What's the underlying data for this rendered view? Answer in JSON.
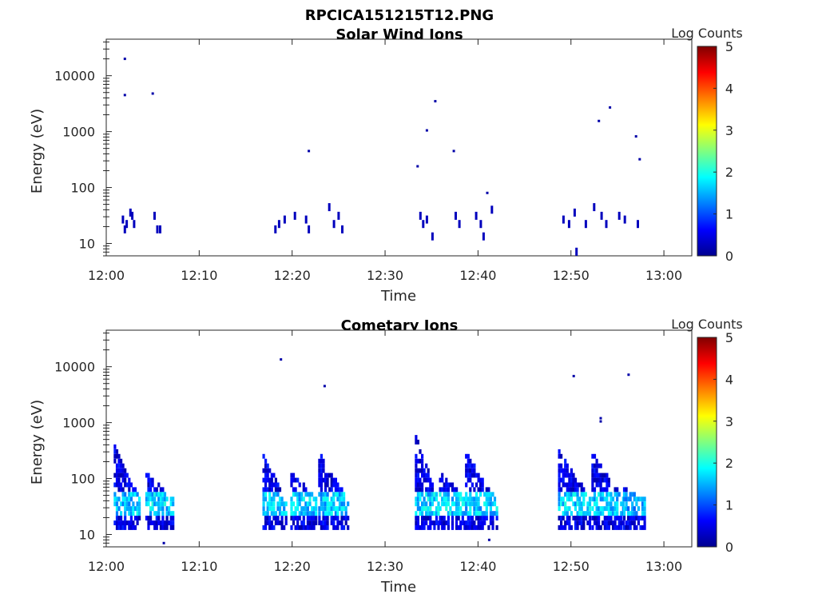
{
  "figure_title": "RPCICA151215T12.PNG",
  "chart_data": [
    {
      "type": "heatmap",
      "title": "Solar Wind Ions",
      "xlabel": "Time",
      "ylabel": "Energy (eV)",
      "y_scale": "log",
      "xlim": [
        "12:00",
        "13:03"
      ],
      "ylim": [
        6,
        45000
      ],
      "x_ticks": [
        "12:00",
        "12:10",
        "12:20",
        "12:30",
        "12:40",
        "12:50",
        "13:00"
      ],
      "y_ticks": [
        "10",
        "100",
        "1000",
        "10000"
      ],
      "colorbar": {
        "label": "Log Counts",
        "min": 0,
        "max": 5,
        "ticks": [
          "0",
          "1",
          "2",
          "3",
          "4",
          "5"
        ]
      },
      "points": [
        [
          "12:02.0",
          20000,
          0.2
        ],
        [
          "12:02.0",
          4500,
          0.2
        ],
        [
          "12:05.0",
          4800,
          0.2
        ],
        [
          "12:01.8",
          30,
          0.3
        ],
        [
          "12:02.0",
          20,
          0.3
        ],
        [
          "12:02.2",
          25,
          0.3
        ],
        [
          "12:02.6",
          40,
          0.3
        ],
        [
          "12:02.8",
          35,
          0.3
        ],
        [
          "12:03.0",
          25,
          0.3
        ],
        [
          "12:05.2",
          35,
          0.3
        ],
        [
          "12:05.5",
          20,
          0.3
        ],
        [
          "12:05.8",
          20,
          0.3
        ],
        [
          "12:18.2",
          20,
          0.3
        ],
        [
          "12:18.6",
          25,
          0.3
        ],
        [
          "12:19.2",
          30,
          0.3
        ],
        [
          "12:20.3",
          35,
          0.3
        ],
        [
          "12:21.5",
          30,
          0.3
        ],
        [
          "12:21.8",
          20,
          0.3
        ],
        [
          "12:21.8",
          450,
          0.2
        ],
        [
          "12:24.0",
          50,
          0.3
        ],
        [
          "12:24.5",
          25,
          0.3
        ],
        [
          "12:25.0",
          35,
          0.3
        ],
        [
          "12:25.4",
          20,
          0.3
        ],
        [
          "12:33.5",
          240,
          0.2
        ],
        [
          "12:33.8",
          35,
          0.3
        ],
        [
          "12:34.1",
          25,
          0.3
        ],
        [
          "12:34.5",
          30,
          0.3
        ],
        [
          "12:34.5",
          1050,
          0.2
        ],
        [
          "12:35.1",
          15,
          0.3
        ],
        [
          "12:35.4",
          3500,
          0.2
        ],
        [
          "12:37.4",
          450,
          0.2
        ],
        [
          "12:37.6",
          35,
          0.3
        ],
        [
          "12:38.0",
          25,
          0.3
        ],
        [
          "12:39.8",
          35,
          0.3
        ],
        [
          "12:40.3",
          25,
          0.3
        ],
        [
          "12:40.6",
          15,
          0.3
        ],
        [
          "12:41.0",
          80,
          0.2
        ],
        [
          "12:41.5",
          45,
          0.3
        ],
        [
          "12:49.2",
          30,
          0.3
        ],
        [
          "12:49.8",
          25,
          0.3
        ],
        [
          "12:50.4",
          40,
          0.3
        ],
        [
          "12:50.6",
          8,
          0.3
        ],
        [
          "12:51.6",
          25,
          0.3
        ],
        [
          "12:52.5",
          50,
          0.3
        ],
        [
          "12:53.0",
          1550,
          0.2
        ],
        [
          "12:53.3",
          35,
          0.3
        ],
        [
          "12:53.8",
          25,
          0.3
        ],
        [
          "12:54.2",
          2700,
          0.2
        ],
        [
          "12:55.2",
          35,
          0.3
        ],
        [
          "12:55.8",
          30,
          0.3
        ],
        [
          "12:57.0",
          820,
          0.2
        ],
        [
          "12:57.2",
          25,
          0.3
        ],
        [
          "12:57.4",
          320,
          0.2
        ]
      ]
    },
    {
      "type": "heatmap",
      "title": "Cometary Ions",
      "xlabel": "Time",
      "ylabel": "Energy (eV)",
      "y_scale": "log",
      "xlim": [
        "12:00",
        "13:03"
      ],
      "ylim": [
        6,
        45000
      ],
      "x_ticks": [
        "12:00",
        "12:10",
        "12:20",
        "12:30",
        "12:40",
        "12:50",
        "13:00"
      ],
      "y_ticks": [
        "10",
        "100",
        "1000",
        "10000"
      ],
      "colorbar": {
        "label": "Log Counts",
        "min": 0,
        "max": 5,
        "ticks": [
          "0",
          "1",
          "2",
          "3",
          "4",
          "5"
        ]
      },
      "bursts": [
        {
          "start": "12:00.8",
          "end": "12:03.5",
          "top": 350,
          "bottom": 12,
          "peak": 1.8
        },
        {
          "start": "12:04.2",
          "end": "12:07.0",
          "top": 120,
          "bottom": 12,
          "peak": 1.9
        },
        {
          "start": "12:16.8",
          "end": "12:19.2",
          "top": 260,
          "bottom": 12,
          "peak": 1.8
        },
        {
          "start": "12:19.8",
          "end": "12:22.5",
          "top": 120,
          "bottom": 12,
          "peak": 1.8
        },
        {
          "start": "12:22.8",
          "end": "12:25.8",
          "top": 260,
          "bottom": 12,
          "peak": 1.8
        },
        {
          "start": "12:33.2",
          "end": "12:35.6",
          "top": 520,
          "bottom": 12,
          "peak": 1.9
        },
        {
          "start": "12:35.8",
          "end": "12:38.5",
          "top": 120,
          "bottom": 12,
          "peak": 1.9
        },
        {
          "start": "12:38.6",
          "end": "12:41.8",
          "top": 280,
          "bottom": 12,
          "peak": 1.8
        },
        {
          "start": "12:48.6",
          "end": "12:52.0",
          "top": 280,
          "bottom": 12,
          "peak": 1.9
        },
        {
          "start": "12:52.2",
          "end": "12:55.5",
          "top": 260,
          "bottom": 12,
          "peak": 1.8
        },
        {
          "start": "12:55.6",
          "end": "12:57.8",
          "top": 60,
          "bottom": 12,
          "peak": 1.6
        }
      ],
      "points": [
        [
          "12:18.8",
          13500,
          0.2
        ],
        [
          "12:23.5",
          4500,
          0.2
        ],
        [
          "12:50.3",
          6800,
          0.2
        ],
        [
          "12:56.2",
          7200,
          0.2
        ],
        [
          "12:53.2",
          1200,
          0.2
        ],
        [
          "12:53.2",
          1050,
          0.2
        ],
        [
          "12:41.2",
          8,
          0.2
        ],
        [
          "12:06.2",
          7,
          0.2
        ]
      ]
    }
  ]
}
